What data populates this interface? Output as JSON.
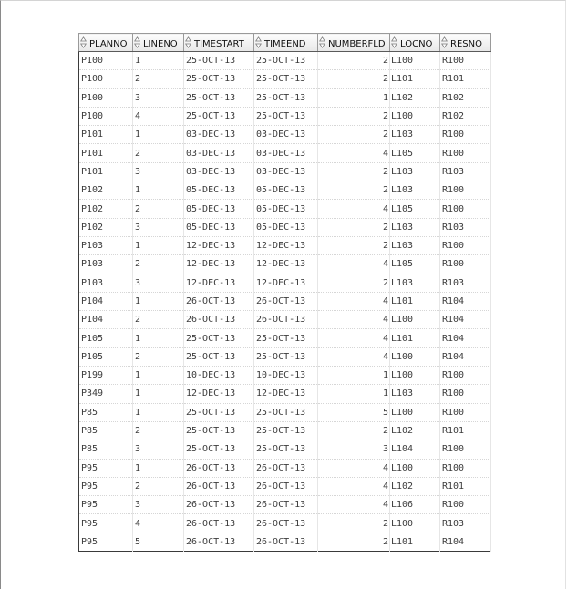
{
  "grid": {
    "columns": [
      "PLANNO",
      "LINENO",
      "TIMESTART",
      "TIMEEND",
      "NUMBERFLD",
      "LOCNO",
      "RESNO"
    ],
    "sort_icon": "sort-arrows-icon",
    "rows": [
      [
        "P100",
        "1",
        "25-OCT-13",
        "25-OCT-13",
        "2",
        "L100",
        "R100"
      ],
      [
        "P100",
        "2",
        "25-OCT-13",
        "25-OCT-13",
        "2",
        "L101",
        "R101"
      ],
      [
        "P100",
        "3",
        "25-OCT-13",
        "25-OCT-13",
        "1",
        "L102",
        "R102"
      ],
      [
        "P100",
        "4",
        "25-OCT-13",
        "25-OCT-13",
        "2",
        "L100",
        "R102"
      ],
      [
        "P101",
        "1",
        "03-DEC-13",
        "03-DEC-13",
        "2",
        "L103",
        "R100"
      ],
      [
        "P101",
        "2",
        "03-DEC-13",
        "03-DEC-13",
        "4",
        "L105",
        "R100"
      ],
      [
        "P101",
        "3",
        "03-DEC-13",
        "03-DEC-13",
        "2",
        "L103",
        "R103"
      ],
      [
        "P102",
        "1",
        "05-DEC-13",
        "05-DEC-13",
        "2",
        "L103",
        "R100"
      ],
      [
        "P102",
        "2",
        "05-DEC-13",
        "05-DEC-13",
        "4",
        "L105",
        "R100"
      ],
      [
        "P102",
        "3",
        "05-DEC-13",
        "05-DEC-13",
        "2",
        "L103",
        "R103"
      ],
      [
        "P103",
        "1",
        "12-DEC-13",
        "12-DEC-13",
        "2",
        "L103",
        "R100"
      ],
      [
        "P103",
        "2",
        "12-DEC-13",
        "12-DEC-13",
        "4",
        "L105",
        "R100"
      ],
      [
        "P103",
        "3",
        "12-DEC-13",
        "12-DEC-13",
        "2",
        "L103",
        "R103"
      ],
      [
        "P104",
        "1",
        "26-OCT-13",
        "26-OCT-13",
        "4",
        "L101",
        "R104"
      ],
      [
        "P104",
        "2",
        "26-OCT-13",
        "26-OCT-13",
        "4",
        "L100",
        "R104"
      ],
      [
        "P105",
        "1",
        "25-OCT-13",
        "25-OCT-13",
        "4",
        "L101",
        "R104"
      ],
      [
        "P105",
        "2",
        "25-OCT-13",
        "25-OCT-13",
        "4",
        "L100",
        "R104"
      ],
      [
        "P199",
        "1",
        "10-DEC-13",
        "10-DEC-13",
        "1",
        "L100",
        "R100"
      ],
      [
        "P349",
        "1",
        "12-DEC-13",
        "12-DEC-13",
        "1",
        "L103",
        "R100"
      ],
      [
        "P85",
        "1",
        "25-OCT-13",
        "25-OCT-13",
        "5",
        "L100",
        "R100"
      ],
      [
        "P85",
        "2",
        "25-OCT-13",
        "25-OCT-13",
        "2",
        "L102",
        "R101"
      ],
      [
        "P85",
        "3",
        "25-OCT-13",
        "25-OCT-13",
        "3",
        "L104",
        "R100"
      ],
      [
        "P95",
        "1",
        "26-OCT-13",
        "26-OCT-13",
        "4",
        "L100",
        "R100"
      ],
      [
        "P95",
        "2",
        "26-OCT-13",
        "26-OCT-13",
        "4",
        "L102",
        "R101"
      ],
      [
        "P95",
        "3",
        "26-OCT-13",
        "26-OCT-13",
        "4",
        "L106",
        "R100"
      ],
      [
        "P95",
        "4",
        "26-OCT-13",
        "26-OCT-13",
        "2",
        "L100",
        "R103"
      ],
      [
        "P95",
        "5",
        "26-OCT-13",
        "26-OCT-13",
        "2",
        "L101",
        "R104"
      ]
    ]
  }
}
